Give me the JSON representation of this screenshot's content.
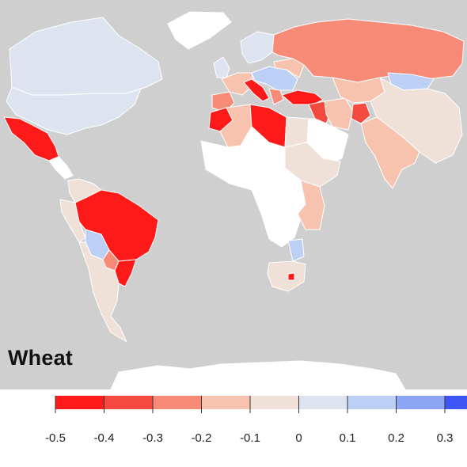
{
  "map": {
    "label": "Wheat",
    "colors": {
      "ocean": "#cfcfcf",
      "no_data": "#ffffff",
      "border": "#ffffff"
    },
    "classes": [
      {
        "range": [
          -0.5,
          -0.4
        ],
        "color": "#ff1a1a"
      },
      {
        "range": [
          -0.4,
          -0.3
        ],
        "color": "#f4493f"
      },
      {
        "range": [
          -0.3,
          -0.2
        ],
        "color": "#f88a78"
      },
      {
        "range": [
          -0.2,
          -0.1
        ],
        "color": "#f7c2ae"
      },
      {
        "range": [
          -0.1,
          0.0
        ],
        "color": "#efe0d8"
      },
      {
        "range": [
          0.0,
          0.1
        ],
        "color": "#dde4f0"
      },
      {
        "range": [
          0.1,
          0.2
        ],
        "color": "#bccff4"
      },
      {
        "range": [
          0.2,
          0.3
        ],
        "color": "#8ca6f5"
      },
      {
        "range": [
          0.3,
          0.4
        ],
        "color": "#3d55f2"
      }
    ],
    "regions": [
      {
        "name": "canada",
        "value": 0.05
      },
      {
        "name": "greenland",
        "value": null
      },
      {
        "name": "usa",
        "value": 0.05
      },
      {
        "name": "mexico",
        "value": -0.45
      },
      {
        "name": "central-america",
        "value": null
      },
      {
        "name": "colombia-venezuela",
        "value": -0.05
      },
      {
        "name": "peru",
        "value": -0.05
      },
      {
        "name": "brazil",
        "value": -0.45
      },
      {
        "name": "bolivia",
        "value": 0.15
      },
      {
        "name": "paraguay",
        "value": -0.25
      },
      {
        "name": "southern-brazil",
        "value": -0.45
      },
      {
        "name": "argentina-chile",
        "value": -0.05
      },
      {
        "name": "uk-ireland",
        "value": 0.05
      },
      {
        "name": "scandinavia",
        "value": 0.05
      },
      {
        "name": "western-europe",
        "value": -0.15
      },
      {
        "name": "iberia",
        "value": -0.25
      },
      {
        "name": "italy",
        "value": -0.45
      },
      {
        "name": "central-europe",
        "value": 0.15
      },
      {
        "name": "balkans",
        "value": -0.25
      },
      {
        "name": "russia",
        "value": -0.25
      },
      {
        "name": "ukraine",
        "value": -0.15
      },
      {
        "name": "turkey",
        "value": -0.45
      },
      {
        "name": "middle-east",
        "value": -0.35
      },
      {
        "name": "arabia",
        "value": null
      },
      {
        "name": "iran",
        "value": -0.15
      },
      {
        "name": "afghanistan",
        "value": -0.35
      },
      {
        "name": "kazakhstan",
        "value": -0.15
      },
      {
        "name": "mongolia",
        "value": 0.15
      },
      {
        "name": "china",
        "value": -0.05
      },
      {
        "name": "india",
        "value": -0.15
      },
      {
        "name": "morocco",
        "value": -0.45
      },
      {
        "name": "algeria",
        "value": -0.15
      },
      {
        "name": "libya",
        "value": -0.45
      },
      {
        "name": "egypt",
        "value": -0.05
      },
      {
        "name": "sudan-ethiopia",
        "value": -0.05
      },
      {
        "name": "west-central-africa",
        "value": null
      },
      {
        "name": "kenya-tanzania",
        "value": -0.15
      },
      {
        "name": "zambia",
        "value": 0.15
      },
      {
        "name": "south-africa",
        "value": -0.05
      },
      {
        "name": "lesotho",
        "value": -0.45
      },
      {
        "name": "antarctica",
        "value": null
      }
    ]
  },
  "legend": {
    "ticks": [
      "-0.5",
      "-0.4",
      "-0.3",
      "-0.2",
      "-0.1",
      "0",
      "0.1",
      "0.2",
      "0.3"
    ]
  }
}
